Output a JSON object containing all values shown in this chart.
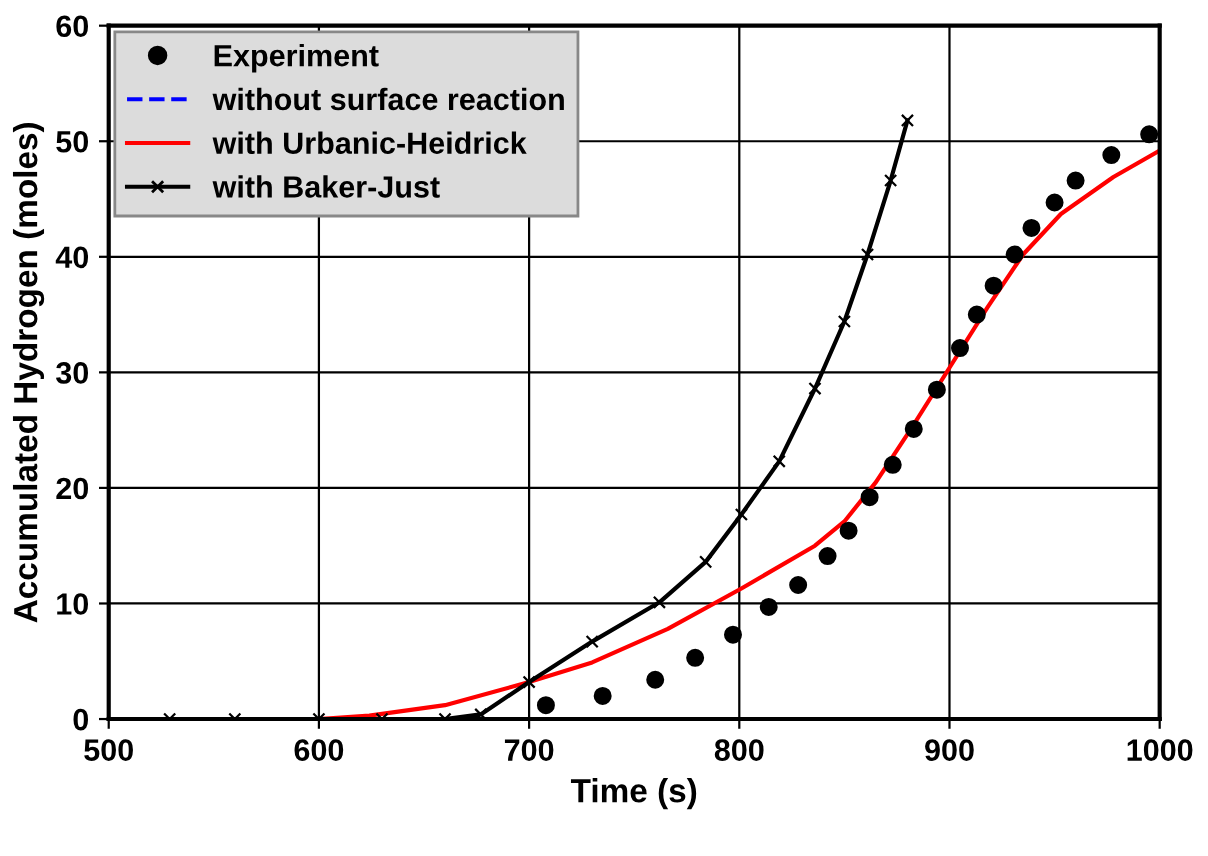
{
  "chart_data": {
    "type": "line",
    "xlabel": "Time (s)",
    "ylabel": "Accumulated Hydrogen (moles)",
    "xlim": [
      500,
      1000
    ],
    "ylim": [
      0,
      60
    ],
    "xticks": [
      500,
      600,
      700,
      800,
      900,
      1000
    ],
    "yticks": [
      0,
      10,
      20,
      30,
      40,
      50,
      60
    ],
    "grid": true,
    "legend": "top left",
    "series": [
      {
        "name": "Experiment",
        "type": "scatter",
        "marker": "circle",
        "color": "#000000",
        "x": [
          708,
          735,
          760,
          779,
          797,
          814,
          828,
          842,
          852,
          862,
          873,
          883,
          894,
          905,
          913,
          921,
          931,
          939,
          950,
          960,
          977,
          995
        ],
        "values": [
          1.2,
          2.0,
          3.4,
          5.3,
          7.3,
          9.7,
          11.6,
          14.1,
          16.3,
          19.2,
          22.0,
          25.1,
          28.5,
          32.1,
          35.0,
          37.5,
          40.2,
          42.5,
          44.7,
          46.6,
          48.8,
          50.6
        ]
      },
      {
        "name": "without surface reaction",
        "line_style": "dashed",
        "marker": "none",
        "color": "#0000ff"
      },
      {
        "name": "with Urbanic-Heidrick",
        "line_style": "solid",
        "marker": "none",
        "color": "#ff0000",
        "x": [
          600,
          624,
          660,
          700,
          730,
          766,
          801,
          836,
          850,
          865,
          882,
          900,
          918,
          935,
          953,
          978,
          1000
        ],
        "values": [
          0,
          0.3,
          1.2,
          3.2,
          4.9,
          7.8,
          11.3,
          15.0,
          17.1,
          20.5,
          25.2,
          30.4,
          35.6,
          40.2,
          43.7,
          46.9,
          49.2
        ]
      },
      {
        "name": "with Baker-Just",
        "line_style": "solid",
        "marker": "cross",
        "color": "#000000",
        "x": [
          529,
          560,
          600,
          630,
          660,
          677,
          700,
          730,
          762,
          784,
          801,
          819,
          836,
          850,
          861,
          872,
          880
        ],
        "values": [
          0,
          0,
          0,
          0,
          0,
          0.4,
          3.2,
          6.7,
          10.1,
          13.6,
          17.7,
          22.3,
          28.6,
          34.4,
          40.2,
          46.6,
          51.8
        ]
      }
    ]
  }
}
